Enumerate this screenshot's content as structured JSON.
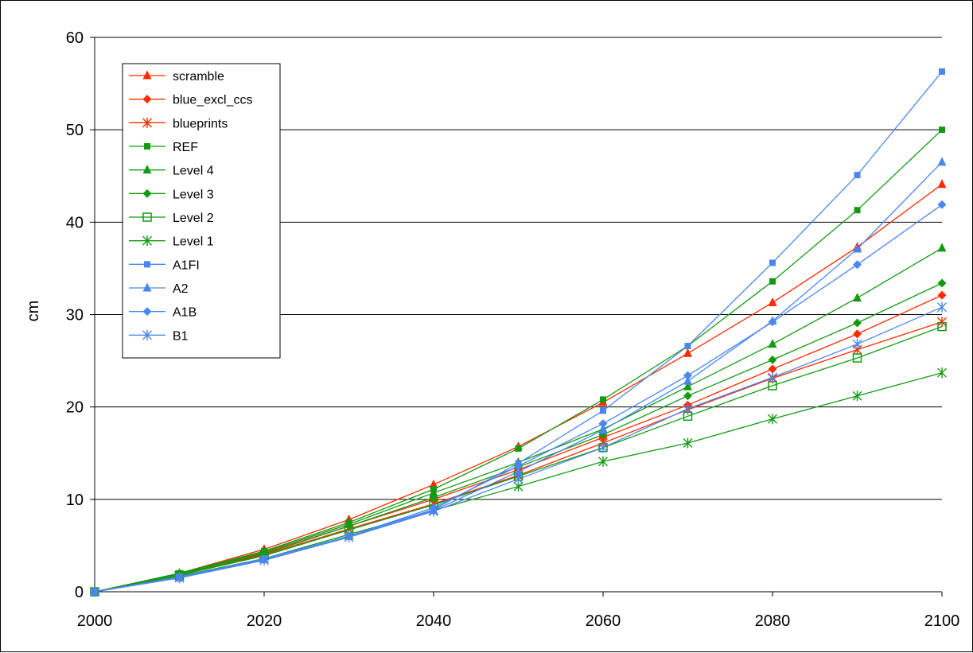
{
  "chart_data": {
    "type": "line",
    "title": "",
    "xlabel": "",
    "ylabel": "cm",
    "xlim": [
      2000,
      2100
    ],
    "ylim": [
      0,
      60
    ],
    "xticks": [
      2000,
      2020,
      2040,
      2060,
      2080,
      2100
    ],
    "yticks": [
      0,
      10,
      20,
      30,
      40,
      50,
      60
    ],
    "x": [
      2000,
      2010,
      2020,
      2030,
      2040,
      2050,
      2060,
      2070,
      2080,
      2090,
      2100
    ],
    "grid": "horizontal",
    "legend_position": "top-left",
    "series": [
      {
        "name": "scramble",
        "color": "#ff2a00",
        "marker": "triangle",
        "values": [
          0,
          2.0,
          4.6,
          7.8,
          11.6,
          15.7,
          20.5,
          25.8,
          31.3,
          37.3,
          44.1
        ]
      },
      {
        "name": "blue_excl_ccs",
        "color": "#ff2a00",
        "marker": "diamond",
        "values": [
          0,
          1.9,
          4.2,
          7.1,
          10.0,
          13.2,
          16.7,
          20.2,
          24.1,
          27.9,
          32.1
        ]
      },
      {
        "name": "blueprints",
        "color": "#ff2a00",
        "marker": "star",
        "values": [
          0,
          1.8,
          4.0,
          6.8,
          9.5,
          12.6,
          16.1,
          19.7,
          23.1,
          26.2,
          29.2
        ]
      },
      {
        "name": "REF",
        "color": "#129b12",
        "marker": "square",
        "values": [
          0,
          2.0,
          4.4,
          7.5,
          11.1,
          15.5,
          20.8,
          26.6,
          33.6,
          41.3,
          50.0
        ]
      },
      {
        "name": "Level 4",
        "color": "#129b12",
        "marker": "triangle",
        "values": [
          0,
          1.9,
          4.3,
          7.3,
          10.7,
          14.0,
          17.6,
          22.2,
          26.8,
          31.8,
          37.2
        ]
      },
      {
        "name": "Level 3",
        "color": "#129b12",
        "marker": "diamond",
        "values": [
          0,
          1.9,
          4.1,
          7.1,
          10.2,
          13.5,
          17.0,
          21.2,
          25.1,
          29.1,
          33.4
        ]
      },
      {
        "name": "Level 2",
        "color": "#129b12",
        "marker": "open-square",
        "values": [
          0,
          1.8,
          3.9,
          6.7,
          9.4,
          12.5,
          15.6,
          19.0,
          22.3,
          25.3,
          28.7
        ]
      },
      {
        "name": "Level 1",
        "color": "#129b12",
        "marker": "star",
        "values": [
          0,
          1.7,
          3.6,
          6.2,
          8.8,
          11.4,
          14.1,
          16.1,
          18.7,
          21.2,
          23.7
        ]
      },
      {
        "name": "A1FI",
        "color": "#4a86f0",
        "marker": "square",
        "values": [
          0,
          1.6,
          3.6,
          6.0,
          8.9,
          13.9,
          19.6,
          26.6,
          35.6,
          45.1,
          56.3
        ]
      },
      {
        "name": "A2",
        "color": "#4a86f0",
        "marker": "triangle",
        "values": [
          0,
          1.5,
          3.5,
          6.0,
          8.8,
          13.0,
          17.5,
          22.8,
          29.3,
          37.1,
          46.5
        ]
      },
      {
        "name": "A1B",
        "color": "#4a86f0",
        "marker": "diamond",
        "values": [
          0,
          1.6,
          3.5,
          6.0,
          9.1,
          13.6,
          18.2,
          23.4,
          29.2,
          35.4,
          41.9
        ]
      },
      {
        "name": "B1",
        "color": "#4a86f0",
        "marker": "star",
        "values": [
          0,
          1.5,
          3.4,
          5.9,
          8.7,
          12.2,
          15.6,
          19.8,
          23.2,
          26.8,
          30.8
        ]
      }
    ]
  }
}
